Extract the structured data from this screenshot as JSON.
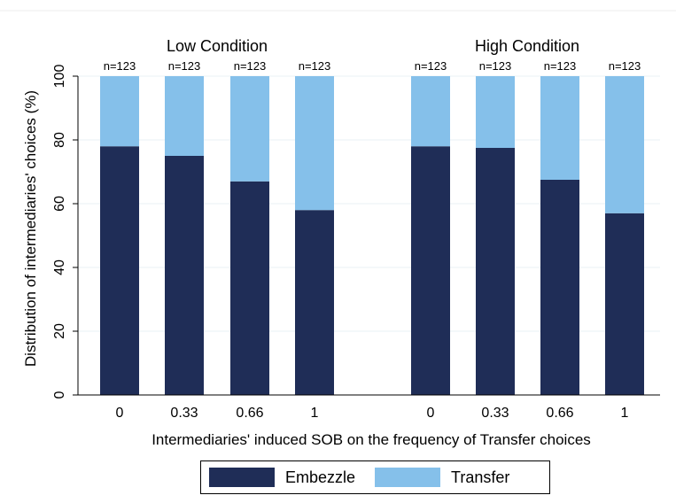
{
  "chart_data": {
    "type": "bar",
    "stacked": true,
    "ylabel": "Distribution of intermediaries' choices (%)",
    "xlabel": "Intermediaries' induced SOB on the frequency of Transfer choices",
    "ylim": [
      0,
      100
    ],
    "yticks": [
      0,
      20,
      40,
      60,
      80,
      100
    ],
    "grid": true,
    "legend_placement": "bottom-center",
    "panels": [
      {
        "title": "Low Condition",
        "categories": [
          "0",
          "0.33",
          "0.66",
          "1"
        ],
        "n_labels": [
          "n=123",
          "n=123",
          "n=123",
          "n=123"
        ],
        "series": [
          {
            "name": "Embezzle",
            "values": [
              78,
              75,
              67,
              58
            ]
          },
          {
            "name": "Transfer",
            "values": [
              22,
              25,
              33,
              42
            ]
          }
        ]
      },
      {
        "title": "High Condition",
        "categories": [
          "0",
          "0.33",
          "0.66",
          "1"
        ],
        "n_labels": [
          "n=123",
          "n=123",
          "n=123",
          "n=123"
        ],
        "series": [
          {
            "name": "Embezzle",
            "values": [
              78,
              77.5,
              67.5,
              57
            ]
          },
          {
            "name": "Transfer",
            "values": [
              22,
              22.5,
              32.5,
              43
            ]
          }
        ]
      }
    ],
    "colors": {
      "Embezzle": "#1f2d57",
      "Transfer": "#85c0ea"
    }
  },
  "legend": {
    "items": [
      {
        "label": "Embezzle",
        "color": "#1f2d57"
      },
      {
        "label": "Transfer",
        "color": "#85c0ea"
      }
    ]
  }
}
